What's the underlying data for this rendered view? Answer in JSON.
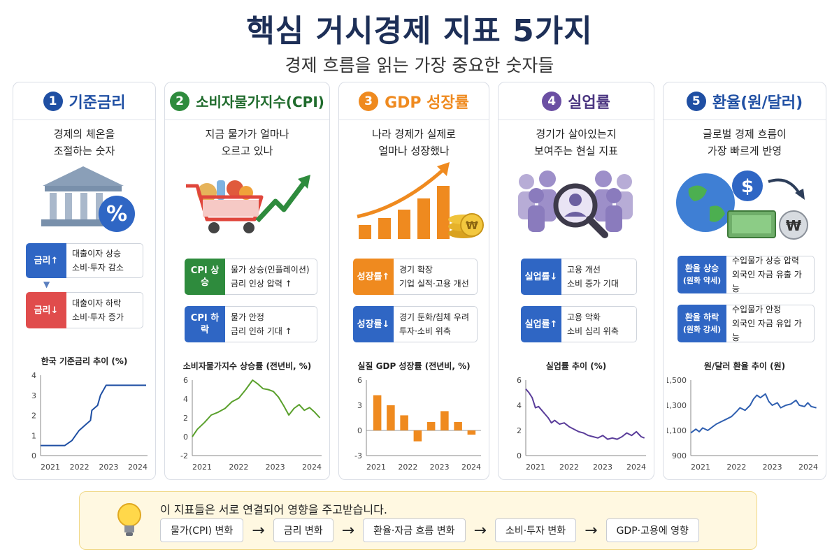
{
  "header": {
    "title": "핵심 거시경제 지표 5가지",
    "subtitle": "경제 흐름을 읽는 가장 중요한 숫자들"
  },
  "colors": {
    "c1": "#1f4fa3",
    "c2": "#2e8b3d",
    "c3": "#ef8a1f",
    "c4": "#6b4fa3",
    "c5": "#1f4fa3",
    "up_red": "#e04c4c",
    "blue_tag": "#2f66c4"
  },
  "cards": [
    {
      "num": "1",
      "title": "기준금리",
      "desc": "경제의 체온을\n조절하는 숫자",
      "icon": "bank-percent-icon",
      "effects": [
        {
          "tag": "금리↑",
          "l1": "대출이자 상승",
          "l2": "소비·투자 감소"
        },
        {
          "tag": "금리↓",
          "l1": "대출이자 하락",
          "l2": "소비·투자 증가"
        }
      ]
    },
    {
      "num": "2",
      "title": "소비자물가지수(CPI)",
      "desc": "지금 물가가 얼마나\n오르고 있나",
      "icon": "shopping-cart-trend-icon",
      "effects": [
        {
          "tag": "CPI 상승",
          "l1": "물가 상승(인플레이션)",
          "l2": "금리 인상 압력 ↑"
        },
        {
          "tag": "CPI 하락",
          "l1": "물가 안정",
          "l2": "금리 인하 기대 ↑"
        }
      ]
    },
    {
      "num": "3",
      "title": "GDP 성장률",
      "desc": "나라 경제가 실제로\n얼마나 성장했나",
      "icon": "growth-bars-coins-icon",
      "effects": [
        {
          "tag": "성장률↑",
          "l1": "경기 확장",
          "l2": "기업 실적·고용 개선"
        },
        {
          "tag": "성장률↓",
          "l1": "경기 둔화/침체 우려",
          "l2": "투자·소비 위축"
        }
      ]
    },
    {
      "num": "4",
      "title": "실업률",
      "desc": "경기가 살아있는지\n보여주는 현실 지표",
      "icon": "people-magnifier-icon",
      "effects": [
        {
          "tag": "실업률↓",
          "l1": "고용 개선",
          "l2": "소비 증가 기대"
        },
        {
          "tag": "실업률↑",
          "l1": "고용 악화",
          "l2": "소비 심리 위축"
        }
      ]
    },
    {
      "num": "5",
      "title": "환율(원/달러)",
      "desc": "글로벌 경제 흐름이\n가장 빠르게 반영",
      "icon": "globe-dollar-won-icon",
      "effects": [
        {
          "tag": "환율 상승",
          "tag2": "(원화 약세)",
          "l1": "수입물가 상승 압력",
          "l2": "외국인 자금 유출 가능"
        },
        {
          "tag": "환율 하락",
          "tag2": "(원화 강세)",
          "l1": "수입물가 안정",
          "l2": "외국인 자금 유입 가능"
        }
      ]
    }
  ],
  "chart_data": [
    {
      "type": "line",
      "title": "한국 기준금리 추이 (%)",
      "x_ticks": [
        "2021",
        "2022",
        "2023",
        "2024"
      ],
      "y_ticks": [
        "0",
        "1",
        "2",
        "3",
        "4"
      ],
      "ylim": [
        0,
        4
      ],
      "xlim": [
        2020.75,
        2024.5
      ],
      "series": [
        {
          "x": [
            2020.75,
            2021.6,
            2021.85,
            2022.1,
            2022.3,
            2022.5,
            2022.55,
            2022.75,
            2022.85,
            2023.05,
            2023.9,
            2024.1,
            2024.45
          ],
          "y": [
            0.5,
            0.5,
            0.75,
            1.25,
            1.5,
            1.75,
            2.25,
            2.5,
            3.0,
            3.5,
            3.5,
            3.5,
            3.5
          ]
        }
      ]
    },
    {
      "type": "line",
      "title": "소비자물가지수 상승률 (전년비, %)",
      "x_ticks": [
        "2021",
        "2022",
        "2023",
        "2024"
      ],
      "y_ticks": [
        "-2",
        "0",
        "2",
        "4",
        "6"
      ],
      "ylim": [
        -2,
        6
      ],
      "xlim": [
        2020.75,
        2024.5
      ],
      "series": [
        {
          "x": [
            2020.75,
            2020.9,
            2021.1,
            2021.3,
            2021.5,
            2021.7,
            2021.9,
            2022.1,
            2022.3,
            2022.5,
            2022.65,
            2022.8,
            2022.95,
            2023.1,
            2023.25,
            2023.4,
            2023.55,
            2023.7,
            2023.85,
            2024.0,
            2024.15,
            2024.3,
            2024.45
          ],
          "y": [
            0.0,
            0.8,
            1.5,
            2.3,
            2.6,
            3.0,
            3.7,
            4.1,
            5.0,
            6.0,
            5.6,
            5.1,
            5.0,
            4.8,
            4.2,
            3.3,
            2.3,
            3.0,
            3.4,
            2.8,
            3.1,
            2.6,
            2.0
          ]
        }
      ]
    },
    {
      "type": "bar",
      "title": "실질 GDP 성장률 (전년비, %)",
      "x_ticks": [
        "2021",
        "2022",
        "2023",
        "2024"
      ],
      "y_ticks": [
        "-3",
        "0",
        "3",
        "6"
      ],
      "ylim": [
        -3,
        6
      ],
      "categories": [
        "2021",
        "2021.5",
        "2022",
        "2022.5",
        "2023",
        "2023.5",
        "2024",
        "2024.5"
      ],
      "values": [
        4.2,
        3.0,
        1.8,
        -1.3,
        1.0,
        2.3,
        1.0,
        -0.5
      ]
    },
    {
      "type": "line",
      "title": "실업률 추이 (%)",
      "x_ticks": [
        "2021",
        "2022",
        "2023",
        "2024"
      ],
      "y_ticks": [
        "0",
        "2",
        "4",
        "6"
      ],
      "ylim": [
        0,
        6
      ],
      "xlim": [
        2020.75,
        2024.5
      ],
      "series": [
        {
          "x": [
            2020.75,
            2020.85,
            2020.95,
            2021.05,
            2021.15,
            2021.25,
            2021.35,
            2021.45,
            2021.55,
            2021.65,
            2021.8,
            2021.95,
            2022.1,
            2022.25,
            2022.4,
            2022.55,
            2022.7,
            2022.85,
            2023.0,
            2023.15,
            2023.3,
            2023.45,
            2023.6,
            2023.75,
            2023.9,
            2024.05,
            2024.2,
            2024.35,
            2024.45
          ],
          "y": [
            5.3,
            5.0,
            4.6,
            3.8,
            3.9,
            3.6,
            3.3,
            3.0,
            2.6,
            2.8,
            2.5,
            2.6,
            2.3,
            2.1,
            1.9,
            1.8,
            1.6,
            1.5,
            1.4,
            1.6,
            1.3,
            1.4,
            1.3,
            1.5,
            1.8,
            1.6,
            1.9,
            1.5,
            1.4
          ]
        }
      ]
    },
    {
      "type": "line",
      "title": "원/달러 환율 추이 (원)",
      "x_ticks": [
        "2021",
        "2022",
        "2023",
        "2024"
      ],
      "y_ticks": [
        "900",
        "1,100",
        "1,300",
        "1,500"
      ],
      "ylim": [
        900,
        1500
      ],
      "xlim": [
        2020.75,
        2024.5
      ],
      "series": [
        {
          "x": [
            2020.75,
            2020.9,
            2021.0,
            2021.1,
            2021.25,
            2021.4,
            2021.5,
            2021.65,
            2021.8,
            2021.95,
            2022.1,
            2022.2,
            2022.35,
            2022.5,
            2022.6,
            2022.7,
            2022.8,
            2022.95,
            2023.05,
            2023.15,
            2023.3,
            2023.4,
            2023.55,
            2023.7,
            2023.85,
            2023.95,
            2024.1,
            2024.2,
            2024.3,
            2024.45
          ],
          "y": [
            1080,
            1110,
            1090,
            1120,
            1100,
            1130,
            1150,
            1170,
            1190,
            1210,
            1250,
            1280,
            1260,
            1300,
            1350,
            1380,
            1360,
            1390,
            1330,
            1300,
            1320,
            1280,
            1300,
            1310,
            1340,
            1300,
            1290,
            1320,
            1290,
            1280
          ]
        }
      ]
    }
  ],
  "bottom": {
    "text": "이 지표들은 서로 연결되어 영향을 주고받습니다.",
    "icon": "lightbulb-icon",
    "steps": [
      "물가(CPI) 변화",
      "금리 변화",
      "환율·자금 흐름 변화",
      "소비·투자 변화",
      "GDP·고용에 영향"
    ],
    "arrow": "→"
  }
}
